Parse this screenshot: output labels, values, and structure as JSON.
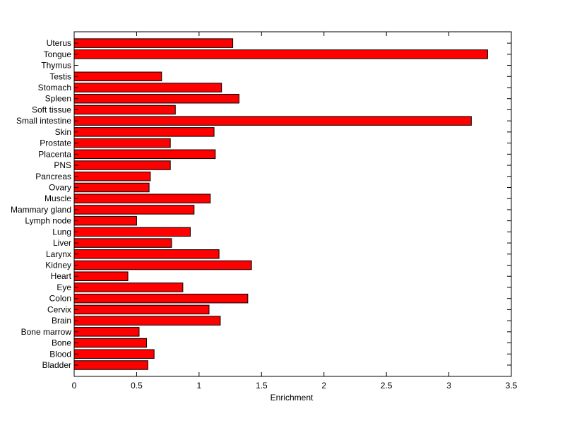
{
  "chart_data": {
    "type": "bar",
    "orientation": "horizontal",
    "title": "",
    "xlabel": "Enrichment",
    "ylabel": "",
    "xlim": [
      0,
      3.5
    ],
    "xticks": [
      "0",
      "0.5",
      "1",
      "1.5",
      "2",
      "2.5",
      "3",
      "3.5"
    ],
    "grid": false,
    "bar_color": "#ff0000",
    "categories": [
      "Bladder",
      "Blood",
      "Bone",
      "Bone marrow",
      "Brain",
      "Cervix",
      "Colon",
      "Eye",
      "Heart",
      "Kidney",
      "Larynx",
      "Liver",
      "Lung",
      "Lymph node",
      "Mammary gland",
      "Muscle",
      "Ovary",
      "Pancreas",
      "PNS",
      "Placenta",
      "Prostate",
      "Skin",
      "Small intestine",
      "Soft tissue",
      "Spleen",
      "Stomach",
      "Testis",
      "Thymus",
      "Tongue",
      "Uterus"
    ],
    "values": [
      0.59,
      0.64,
      0.58,
      0.52,
      1.17,
      1.08,
      1.39,
      0.87,
      0.43,
      1.42,
      1.16,
      0.78,
      0.93,
      0.5,
      0.96,
      1.09,
      0.6,
      0.61,
      0.77,
      1.13,
      0.77,
      1.12,
      3.18,
      0.81,
      1.32,
      1.18,
      0.7,
      0,
      3.31,
      1.27
    ]
  }
}
